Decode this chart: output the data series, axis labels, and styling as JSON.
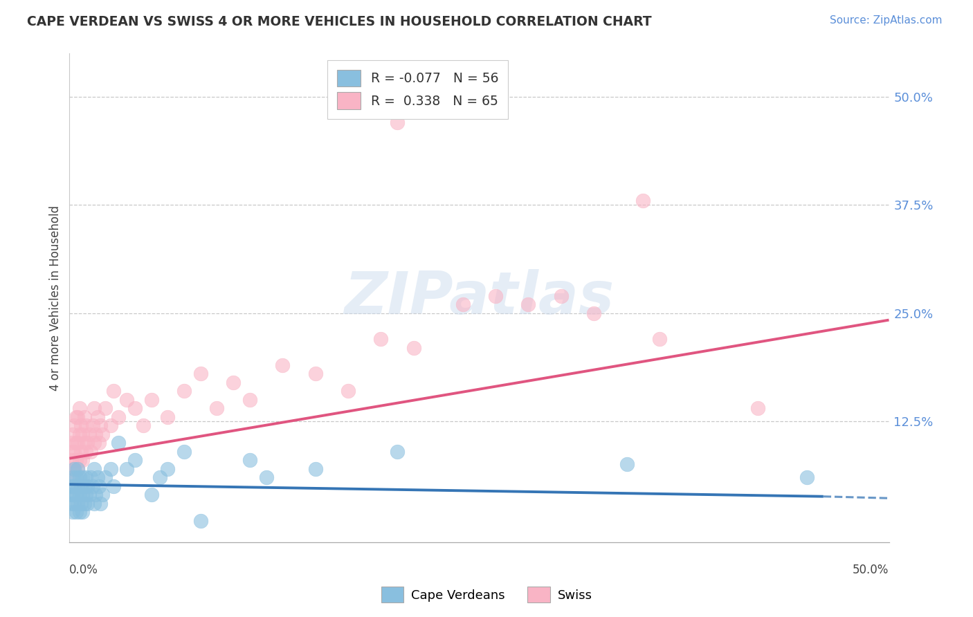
{
  "title": "CAPE VERDEAN VS SWISS 4 OR MORE VEHICLES IN HOUSEHOLD CORRELATION CHART",
  "source_text": "Source: ZipAtlas.com",
  "ylabel": "4 or more Vehicles in Household",
  "ytick_labels": [
    "",
    "12.5%",
    "25.0%",
    "37.5%",
    "50.0%"
  ],
  "ytick_values": [
    0.0,
    0.125,
    0.25,
    0.375,
    0.5
  ],
  "xlim": [
    0.0,
    0.5
  ],
  "ylim": [
    -0.015,
    0.55
  ],
  "legend_blue_R": "R = -0.077",
  "legend_blue_N": "N = 56",
  "legend_pink_R": "R =  0.338",
  "legend_pink_N": "N = 65",
  "legend_cape_label": "Cape Verdeans",
  "legend_swiss_label": "Swiss",
  "watermark": "ZIPatlas",
  "blue_color": "#89bfdf",
  "pink_color": "#f9b4c5",
  "blue_line_color": "#3575b5",
  "pink_line_color": "#e05580",
  "blue_line": [
    [
      0.0,
      0.052
    ],
    [
      0.46,
      0.038
    ]
  ],
  "blue_line_dash": [
    [
      0.46,
      0.038
    ],
    [
      0.5,
      0.036
    ]
  ],
  "pink_line": [
    [
      0.0,
      0.082
    ],
    [
      0.5,
      0.242
    ]
  ],
  "blue_scatter": [
    [
      0.001,
      0.03
    ],
    [
      0.001,
      0.04
    ],
    [
      0.001,
      0.05
    ],
    [
      0.002,
      0.02
    ],
    [
      0.002,
      0.04
    ],
    [
      0.002,
      0.06
    ],
    [
      0.003,
      0.03
    ],
    [
      0.003,
      0.05
    ],
    [
      0.003,
      0.07
    ],
    [
      0.004,
      0.02
    ],
    [
      0.004,
      0.04
    ],
    [
      0.004,
      0.06
    ],
    [
      0.005,
      0.03
    ],
    [
      0.005,
      0.05
    ],
    [
      0.005,
      0.07
    ],
    [
      0.006,
      0.02
    ],
    [
      0.006,
      0.04
    ],
    [
      0.006,
      0.06
    ],
    [
      0.007,
      0.03
    ],
    [
      0.007,
      0.05
    ],
    [
      0.008,
      0.02
    ],
    [
      0.008,
      0.04
    ],
    [
      0.008,
      0.06
    ],
    [
      0.009,
      0.03
    ],
    [
      0.009,
      0.05
    ],
    [
      0.01,
      0.04
    ],
    [
      0.01,
      0.06
    ],
    [
      0.011,
      0.03
    ],
    [
      0.011,
      0.05
    ],
    [
      0.012,
      0.04
    ],
    [
      0.013,
      0.06
    ],
    [
      0.014,
      0.05
    ],
    [
      0.015,
      0.03
    ],
    [
      0.015,
      0.07
    ],
    [
      0.016,
      0.04
    ],
    [
      0.017,
      0.06
    ],
    [
      0.018,
      0.05
    ],
    [
      0.019,
      0.03
    ],
    [
      0.02,
      0.04
    ],
    [
      0.022,
      0.06
    ],
    [
      0.025,
      0.07
    ],
    [
      0.027,
      0.05
    ],
    [
      0.03,
      0.1
    ],
    [
      0.035,
      0.07
    ],
    [
      0.04,
      0.08
    ],
    [
      0.05,
      0.04
    ],
    [
      0.055,
      0.06
    ],
    [
      0.06,
      0.07
    ],
    [
      0.07,
      0.09
    ],
    [
      0.08,
      0.01
    ],
    [
      0.11,
      0.08
    ],
    [
      0.12,
      0.06
    ],
    [
      0.15,
      0.07
    ],
    [
      0.2,
      0.09
    ],
    [
      0.34,
      0.075
    ],
    [
      0.45,
      0.06
    ]
  ],
  "pink_scatter": [
    [
      0.001,
      0.06
    ],
    [
      0.001,
      0.08
    ],
    [
      0.001,
      0.1
    ],
    [
      0.002,
      0.07
    ],
    [
      0.002,
      0.09
    ],
    [
      0.002,
      0.11
    ],
    [
      0.003,
      0.07
    ],
    [
      0.003,
      0.09
    ],
    [
      0.003,
      0.12
    ],
    [
      0.004,
      0.08
    ],
    [
      0.004,
      0.1
    ],
    [
      0.004,
      0.13
    ],
    [
      0.005,
      0.07
    ],
    [
      0.005,
      0.1
    ],
    [
      0.005,
      0.13
    ],
    [
      0.006,
      0.08
    ],
    [
      0.006,
      0.11
    ],
    [
      0.006,
      0.14
    ],
    [
      0.007,
      0.09
    ],
    [
      0.007,
      0.12
    ],
    [
      0.008,
      0.08
    ],
    [
      0.008,
      0.11
    ],
    [
      0.009,
      0.1
    ],
    [
      0.009,
      0.13
    ],
    [
      0.01,
      0.09
    ],
    [
      0.01,
      0.12
    ],
    [
      0.011,
      0.1
    ],
    [
      0.012,
      0.11
    ],
    [
      0.013,
      0.09
    ],
    [
      0.014,
      0.12
    ],
    [
      0.015,
      0.1
    ],
    [
      0.015,
      0.14
    ],
    [
      0.016,
      0.11
    ],
    [
      0.017,
      0.13
    ],
    [
      0.018,
      0.1
    ],
    [
      0.019,
      0.12
    ],
    [
      0.02,
      0.11
    ],
    [
      0.022,
      0.14
    ],
    [
      0.025,
      0.12
    ],
    [
      0.027,
      0.16
    ],
    [
      0.03,
      0.13
    ],
    [
      0.035,
      0.15
    ],
    [
      0.04,
      0.14
    ],
    [
      0.045,
      0.12
    ],
    [
      0.05,
      0.15
    ],
    [
      0.06,
      0.13
    ],
    [
      0.07,
      0.16
    ],
    [
      0.08,
      0.18
    ],
    [
      0.09,
      0.14
    ],
    [
      0.1,
      0.17
    ],
    [
      0.11,
      0.15
    ],
    [
      0.13,
      0.19
    ],
    [
      0.15,
      0.18
    ],
    [
      0.17,
      0.16
    ],
    [
      0.19,
      0.22
    ],
    [
      0.21,
      0.21
    ],
    [
      0.24,
      0.26
    ],
    [
      0.26,
      0.27
    ],
    [
      0.28,
      0.26
    ],
    [
      0.3,
      0.27
    ],
    [
      0.32,
      0.25
    ],
    [
      0.35,
      0.38
    ],
    [
      0.36,
      0.22
    ],
    [
      0.42,
      0.14
    ],
    [
      0.2,
      0.47
    ]
  ]
}
